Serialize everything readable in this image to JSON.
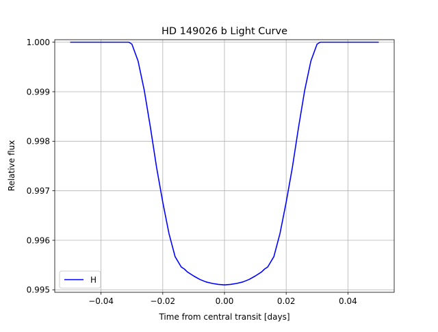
{
  "chart_data": {
    "type": "line",
    "title": "HD 149026 b Light Curve",
    "xlabel": "Time from central transit [days]",
    "ylabel": "Relative flux",
    "xlim": [
      -0.055,
      0.055
    ],
    "ylim": [
      0.99495,
      1.00005
    ],
    "grid": true,
    "legend_position": "lower-left",
    "x_ticks": [
      -0.04,
      -0.02,
      0.0,
      0.02,
      0.04
    ],
    "x_tick_labels": [
      "−0.04",
      "−0.02",
      "0.00",
      "0.02",
      "0.04"
    ],
    "y_ticks": [
      0.995,
      0.996,
      0.997,
      0.998,
      0.999,
      1.0
    ],
    "y_tick_labels": [
      "0.995",
      "0.996",
      "0.997",
      "0.998",
      "0.999",
      "1.000"
    ],
    "series": [
      {
        "name": "H",
        "color": "#0000ff",
        "x": [
          -0.05,
          -0.04,
          -0.031,
          -0.03,
          -0.028,
          -0.026,
          -0.024,
          -0.022,
          -0.02,
          -0.018,
          -0.016,
          -0.014,
          -0.013,
          -0.012,
          -0.01,
          -0.008,
          -0.006,
          -0.004,
          -0.002,
          0.0,
          0.002,
          0.004,
          0.006,
          0.008,
          0.01,
          0.012,
          0.013,
          0.014,
          0.016,
          0.018,
          0.02,
          0.022,
          0.024,
          0.026,
          0.028,
          0.03,
          0.031,
          0.04,
          0.05
        ],
        "y": [
          1.0,
          1.0,
          1.0,
          0.99996,
          0.99962,
          0.99903,
          0.99828,
          0.99747,
          0.99677,
          0.99614,
          0.99567,
          0.99546,
          0.99542,
          0.99536,
          0.99528,
          0.99521,
          0.99516,
          0.99513,
          0.99511,
          0.9951,
          0.99511,
          0.99513,
          0.99516,
          0.99521,
          0.99528,
          0.99536,
          0.99542,
          0.99546,
          0.99567,
          0.99614,
          0.99677,
          0.99747,
          0.99828,
          0.99903,
          0.99962,
          0.99996,
          1.0,
          1.0,
          1.0
        ]
      }
    ]
  }
}
